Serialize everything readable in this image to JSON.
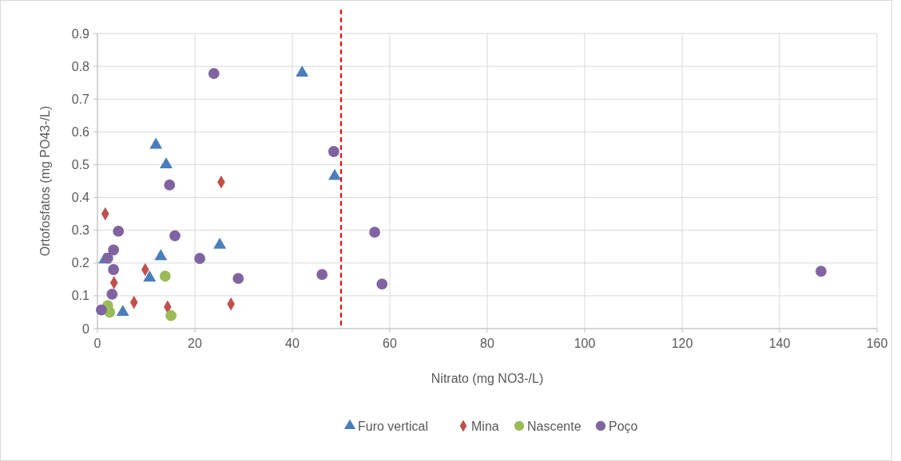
{
  "chart_data": {
    "type": "scatter",
    "xlabel": "Nitrato (mg NO3-/L)",
    "ylabel": "Ortofosfatos (mg PO43-/L)",
    "xlim": [
      0,
      160
    ],
    "xticks": [
      0,
      20,
      40,
      60,
      80,
      100,
      120,
      140,
      160
    ],
    "ylim": [
      0,
      0.9
    ],
    "yticks": [
      0,
      0.1,
      0.2,
      0.3,
      0.4,
      0.5,
      0.6,
      0.7,
      0.8,
      0.9
    ],
    "grid": true,
    "legend": "bottom",
    "ref_lines": [
      {
        "axis": "x",
        "value": 50,
        "color": "#ff0000",
        "line_style": "dashed"
      }
    ],
    "series": [
      {
        "name": "Furo vertical",
        "color": "#4a7ebb",
        "marker": "triangle",
        "x": [
          1.5,
          5.2,
          10.7,
          12,
          13,
          14.1,
          25.1,
          42,
          48.7
        ],
        "values": [
          0.21,
          0.05,
          0.155,
          0.56,
          0.22,
          0.5,
          0.255,
          0.78,
          0.465
        ]
      },
      {
        "name": "Mina",
        "color": "#c0504d",
        "marker": "diamond",
        "x": [
          1.6,
          9.8,
          3.4,
          7.5,
          14.4,
          25.4,
          27.4
        ],
        "values": [
          0.35,
          0.18,
          0.14,
          0.08,
          0.066,
          0.447,
          0.075
        ]
      },
      {
        "name": "Nascente",
        "color": "#9bbb59",
        "marker": "circle",
        "x": [
          2.1,
          2.5,
          13.9,
          15.1
        ],
        "values": [
          0.07,
          0.05,
          0.16,
          0.04
        ]
      },
      {
        "name": "Poço",
        "color": "#8064a2",
        "marker": "circle",
        "x": [
          0.8,
          3,
          3.3,
          3.3,
          2.1,
          4.3,
          14.8,
          15.9,
          21,
          23.9,
          28.9,
          46.1,
          48.5,
          56.9,
          58.4,
          148.5
        ],
        "values": [
          0.057,
          0.105,
          0.18,
          0.24,
          0.215,
          0.297,
          0.438,
          0.283,
          0.214,
          0.778,
          0.153,
          0.165,
          0.54,
          0.294,
          0.136,
          0.175
        ]
      }
    ]
  }
}
